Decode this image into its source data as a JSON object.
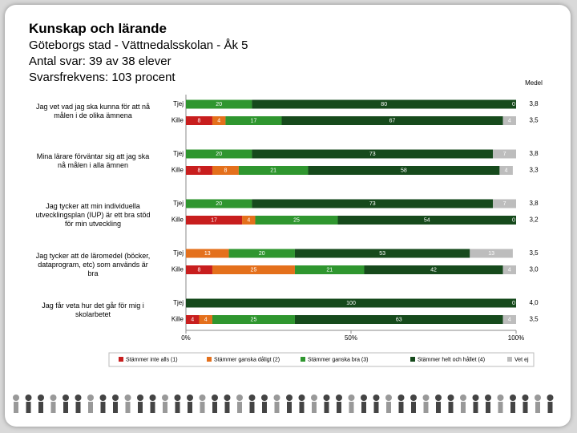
{
  "chart_data": {
    "type": "bar",
    "stacked": true,
    "orientation": "horizontal",
    "title": "Kunskap och lärande",
    "subtitle": [
      "Göteborgs stad - Vättnedalsskolan - Åk 5",
      "Antal svar: 39 av 38 elever",
      "Svarsfrekvens: 103 procent"
    ],
    "questions": [
      "Jag vet vad jag ska kunna för att nå målen i de olika ämnena",
      "Mina lärare förväntar sig att jag ska nå målen i alla ämnen",
      "Jag tycker att min individuella utvecklingsplan (IUP) är ett bra stöd för min utveckling",
      "Jag tycker att de läromedel (böcker, dataprogram, etc) som används är bra",
      "Jag får veta hur det går för mig i skolarbetet"
    ],
    "categories": [
      "Tjej",
      "Kille",
      "Tjej",
      "Kille",
      "Tjej",
      "Kille",
      "Tjej",
      "Kille",
      "Tjej",
      "Kille"
    ],
    "series": [
      {
        "name": "Stämmer inte alls (1)",
        "color": "#c81e1e",
        "values": [
          0,
          8,
          0,
          8,
          0,
          17,
          0,
          8,
          0,
          4
        ]
      },
      {
        "name": "Stämmer ganska dåligt (2)",
        "color": "#e4701c",
        "values": [
          0,
          4,
          0,
          8,
          0,
          4,
          13,
          25,
          0,
          4
        ]
      },
      {
        "name": "Stämmer ganska bra (3)",
        "color": "#2f962f",
        "values": [
          20,
          17,
          20,
          21,
          20,
          25,
          20,
          21,
          0,
          25
        ]
      },
      {
        "name": "Stämmer helt och hållet (4)",
        "color": "#164a1c",
        "values": [
          80,
          67,
          73,
          58,
          73,
          54,
          53,
          42,
          100,
          63
        ]
      },
      {
        "name": "Vet ej",
        "color": "#bdbdbd",
        "values": [
          0,
          4,
          7,
          4,
          7,
          0,
          13,
          4,
          0,
          4
        ]
      }
    ],
    "mean": {
      "label": "Medel",
      "values": [
        3.8,
        3.5,
        3.8,
        3.3,
        3.8,
        3.2,
        3.5,
        3.0,
        4.0,
        3.5
      ],
      "value_labels": [
        "3,8",
        "3,5",
        "3,8",
        "3,3",
        "3,8",
        "3,2",
        "3,5",
        "3,0",
        "4,0",
        "3,5"
      ]
    },
    "xlim": [
      0,
      100
    ],
    "xticks": [
      {
        "value": 0,
        "label": "0%"
      },
      {
        "value": 50,
        "label": "50%"
      },
      {
        "value": 100,
        "label": "100%"
      }
    ]
  }
}
